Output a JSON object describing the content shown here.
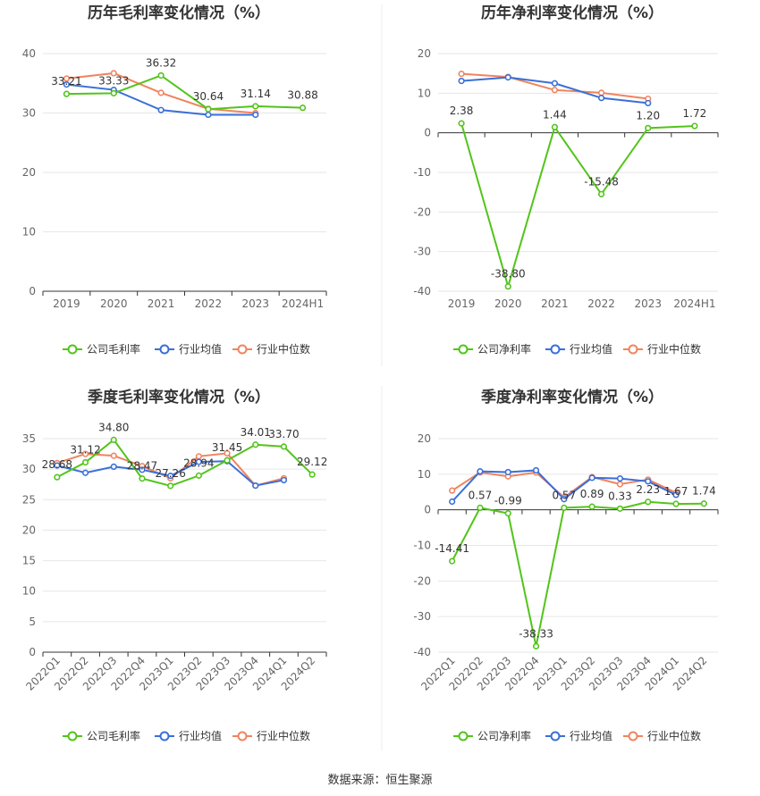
{
  "colors": {
    "company": "#52c41a",
    "industry_avg": "#3a6fd8",
    "industry_median": "#f0845f"
  },
  "source_text": "数据来源：恒生聚源",
  "chart_data": [
    {
      "type": "line",
      "title": "历年毛利率变化情况（%）",
      "categories": [
        "2019",
        "2020",
        "2021",
        "2022",
        "2023",
        "2024H1"
      ],
      "ylim": [
        0,
        40
      ],
      "yticks": [
        0,
        10,
        20,
        30,
        40
      ],
      "grid": true,
      "legend_position": "bottom",
      "series": [
        {
          "name": "公司毛利率",
          "values": [
            33.21,
            33.33,
            36.32,
            30.64,
            31.14,
            30.88
          ],
          "labels": [
            "33.21",
            "33.33",
            "36.32",
            "30.64",
            "31.14",
            "30.88"
          ]
        },
        {
          "name": "行业均值",
          "values": [
            34.8,
            33.9,
            30.5,
            29.7,
            29.7,
            null
          ]
        },
        {
          "name": "行业中位数",
          "values": [
            35.8,
            36.7,
            33.4,
            30.7,
            30.0,
            null
          ]
        }
      ]
    },
    {
      "type": "line",
      "title": "历年净利率变化情况（%）",
      "categories": [
        "2019",
        "2020",
        "2021",
        "2022",
        "2023",
        "2024H1"
      ],
      "ylim": [
        -40,
        20
      ],
      "yticks": [
        -40,
        -30,
        -20,
        -10,
        0,
        10,
        20
      ],
      "grid": true,
      "legend_position": "bottom",
      "series": [
        {
          "name": "公司净利率",
          "values": [
            2.38,
            -38.8,
            1.44,
            -15.48,
            1.2,
            1.72
          ],
          "labels": [
            "2.38",
            "-38.80",
            "1.44",
            "-15.48",
            "1.20",
            "1.72"
          ]
        },
        {
          "name": "行业均值",
          "values": [
            13.1,
            14.0,
            12.5,
            8.8,
            7.5,
            null
          ]
        },
        {
          "name": "行业中位数",
          "values": [
            14.9,
            14.1,
            10.8,
            10.1,
            8.6,
            null
          ]
        }
      ]
    },
    {
      "type": "line",
      "title": "季度毛利率变化情况（%）",
      "categories": [
        "2022Q1",
        "2022Q2",
        "2022Q3",
        "2022Q4",
        "2023Q1",
        "2023Q2",
        "2023Q3",
        "2023Q4",
        "2024Q1",
        "2024Q2"
      ],
      "ylim": [
        0,
        35
      ],
      "yticks": [
        0,
        5,
        10,
        15,
        20,
        25,
        30,
        35
      ],
      "grid": true,
      "legend_position": "bottom",
      "series": [
        {
          "name": "公司毛利率",
          "values": [
            28.68,
            31.12,
            34.8,
            28.47,
            27.26,
            28.94,
            31.45,
            34.01,
            33.7,
            29.12
          ],
          "labels": [
            "28.68",
            "31.12",
            "34.80",
            "28.47",
            "27.26",
            "28.94",
            "31.45",
            "34.01",
            "33.70",
            "29.12"
          ]
        },
        {
          "name": "行业均值",
          "values": [
            30.6,
            29.4,
            30.4,
            29.9,
            28.9,
            31.2,
            31.3,
            27.3,
            28.2,
            null
          ]
        },
        {
          "name": "行业中位数",
          "values": [
            31.0,
            32.5,
            32.2,
            30.5,
            28.5,
            32.1,
            32.6,
            27.3,
            28.5,
            null
          ]
        }
      ]
    },
    {
      "type": "line",
      "title": "季度净利率变化情况（%）",
      "categories": [
        "2022Q1",
        "2022Q2",
        "2022Q3",
        "2022Q4",
        "2023Q1",
        "2023Q2",
        "2023Q3",
        "2023Q4",
        "2024Q1",
        "2024Q2"
      ],
      "ylim": [
        -40,
        20
      ],
      "yticks": [
        -40,
        -30,
        -20,
        -10,
        0,
        10,
        20
      ],
      "grid": true,
      "legend_position": "bottom",
      "series": [
        {
          "name": "公司净利率",
          "values": [
            -14.41,
            0.57,
            -0.99,
            -38.33,
            0.57,
            0.89,
            0.33,
            2.23,
            1.67,
            1.74
          ],
          "labels": [
            "-14.41",
            "0.57",
            "-0.99",
            "-38.33",
            "0.57",
            "0.89",
            "0.33",
            "2.23",
            "1.67",
            "1.74"
          ]
        },
        {
          "name": "行业均值",
          "values": [
            2.3,
            10.8,
            10.6,
            11.1,
            3.0,
            9.0,
            8.8,
            8.0,
            4.2,
            null
          ]
        },
        {
          "name": "行业中位数",
          "values": [
            5.4,
            10.5,
            9.4,
            10.5,
            3.5,
            9.2,
            7.2,
            8.5,
            4.8,
            null
          ]
        }
      ]
    }
  ]
}
